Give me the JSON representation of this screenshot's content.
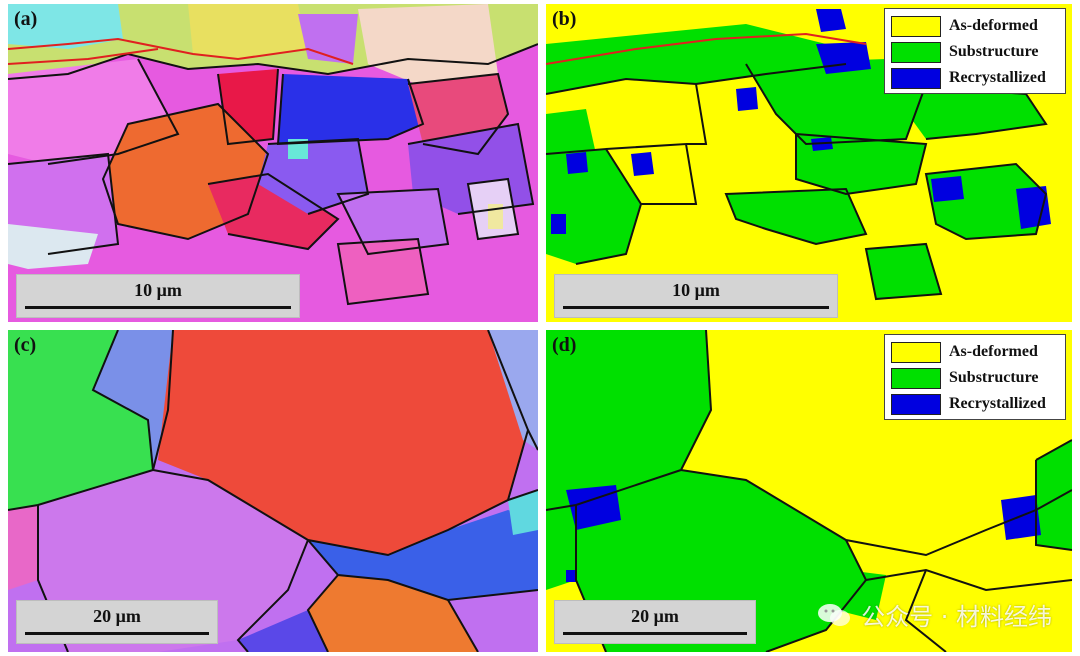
{
  "panels": {
    "a": {
      "label": "(a)",
      "scale_bar": "10 μm"
    },
    "b": {
      "label": "(b)",
      "scale_bar": "10 μm"
    },
    "c": {
      "label": "(c)",
      "scale_bar": "20 μm"
    },
    "d": {
      "label": "(d)",
      "scale_bar": "20 μm"
    }
  },
  "legend": {
    "items": [
      {
        "label": "As-deformed",
        "color": "#ffff00"
      },
      {
        "label": "Substructure",
        "color": "#00e000"
      },
      {
        "label": "Recrystallized",
        "color": "#0000e0"
      }
    ]
  },
  "watermark": {
    "icon": "wechat-icon",
    "text": "公众号 · 材料经纬"
  }
}
